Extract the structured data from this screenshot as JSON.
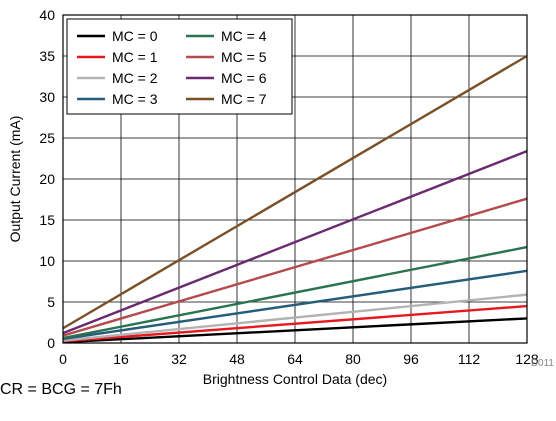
{
  "chart_data": {
    "type": "line",
    "xlabel": "Brightness Control Data (dec)",
    "ylabel": "Output Current (mA)",
    "xlim": [
      0,
      128
    ],
    "ylim": [
      0,
      40
    ],
    "xticks": [
      0,
      16,
      32,
      48,
      64,
      80,
      96,
      112,
      128
    ],
    "yticks": [
      0,
      5,
      10,
      15,
      20,
      25,
      30,
      35,
      40
    ],
    "grid": true,
    "legend_position": "top-left",
    "x": [
      0,
      128
    ],
    "series": [
      {
        "name": "MC = 0",
        "color": "#000000",
        "values": [
          0.1,
          3.0
        ]
      },
      {
        "name": "MC = 1",
        "color": "#e8191e",
        "values": [
          0.2,
          4.5
        ]
      },
      {
        "name": "MC = 2",
        "color": "#b3b3b3",
        "values": [
          0.3,
          5.9
        ]
      },
      {
        "name": "MC = 3",
        "color": "#275d7a",
        "values": [
          0.5,
          8.8
        ]
      },
      {
        "name": "MC = 4",
        "color": "#2a7352",
        "values": [
          0.6,
          11.7
        ]
      },
      {
        "name": "MC = 5",
        "color": "#b34a4e",
        "values": [
          0.9,
          17.6
        ]
      },
      {
        "name": "MC = 6",
        "color": "#6b2a70",
        "values": [
          1.2,
          23.4
        ]
      },
      {
        "name": "MC = 7",
        "color": "#7a5028",
        "values": [
          1.8,
          35.0
        ]
      }
    ]
  },
  "figure_code": "D011",
  "footnote": "CR = BCG = 7Fh"
}
